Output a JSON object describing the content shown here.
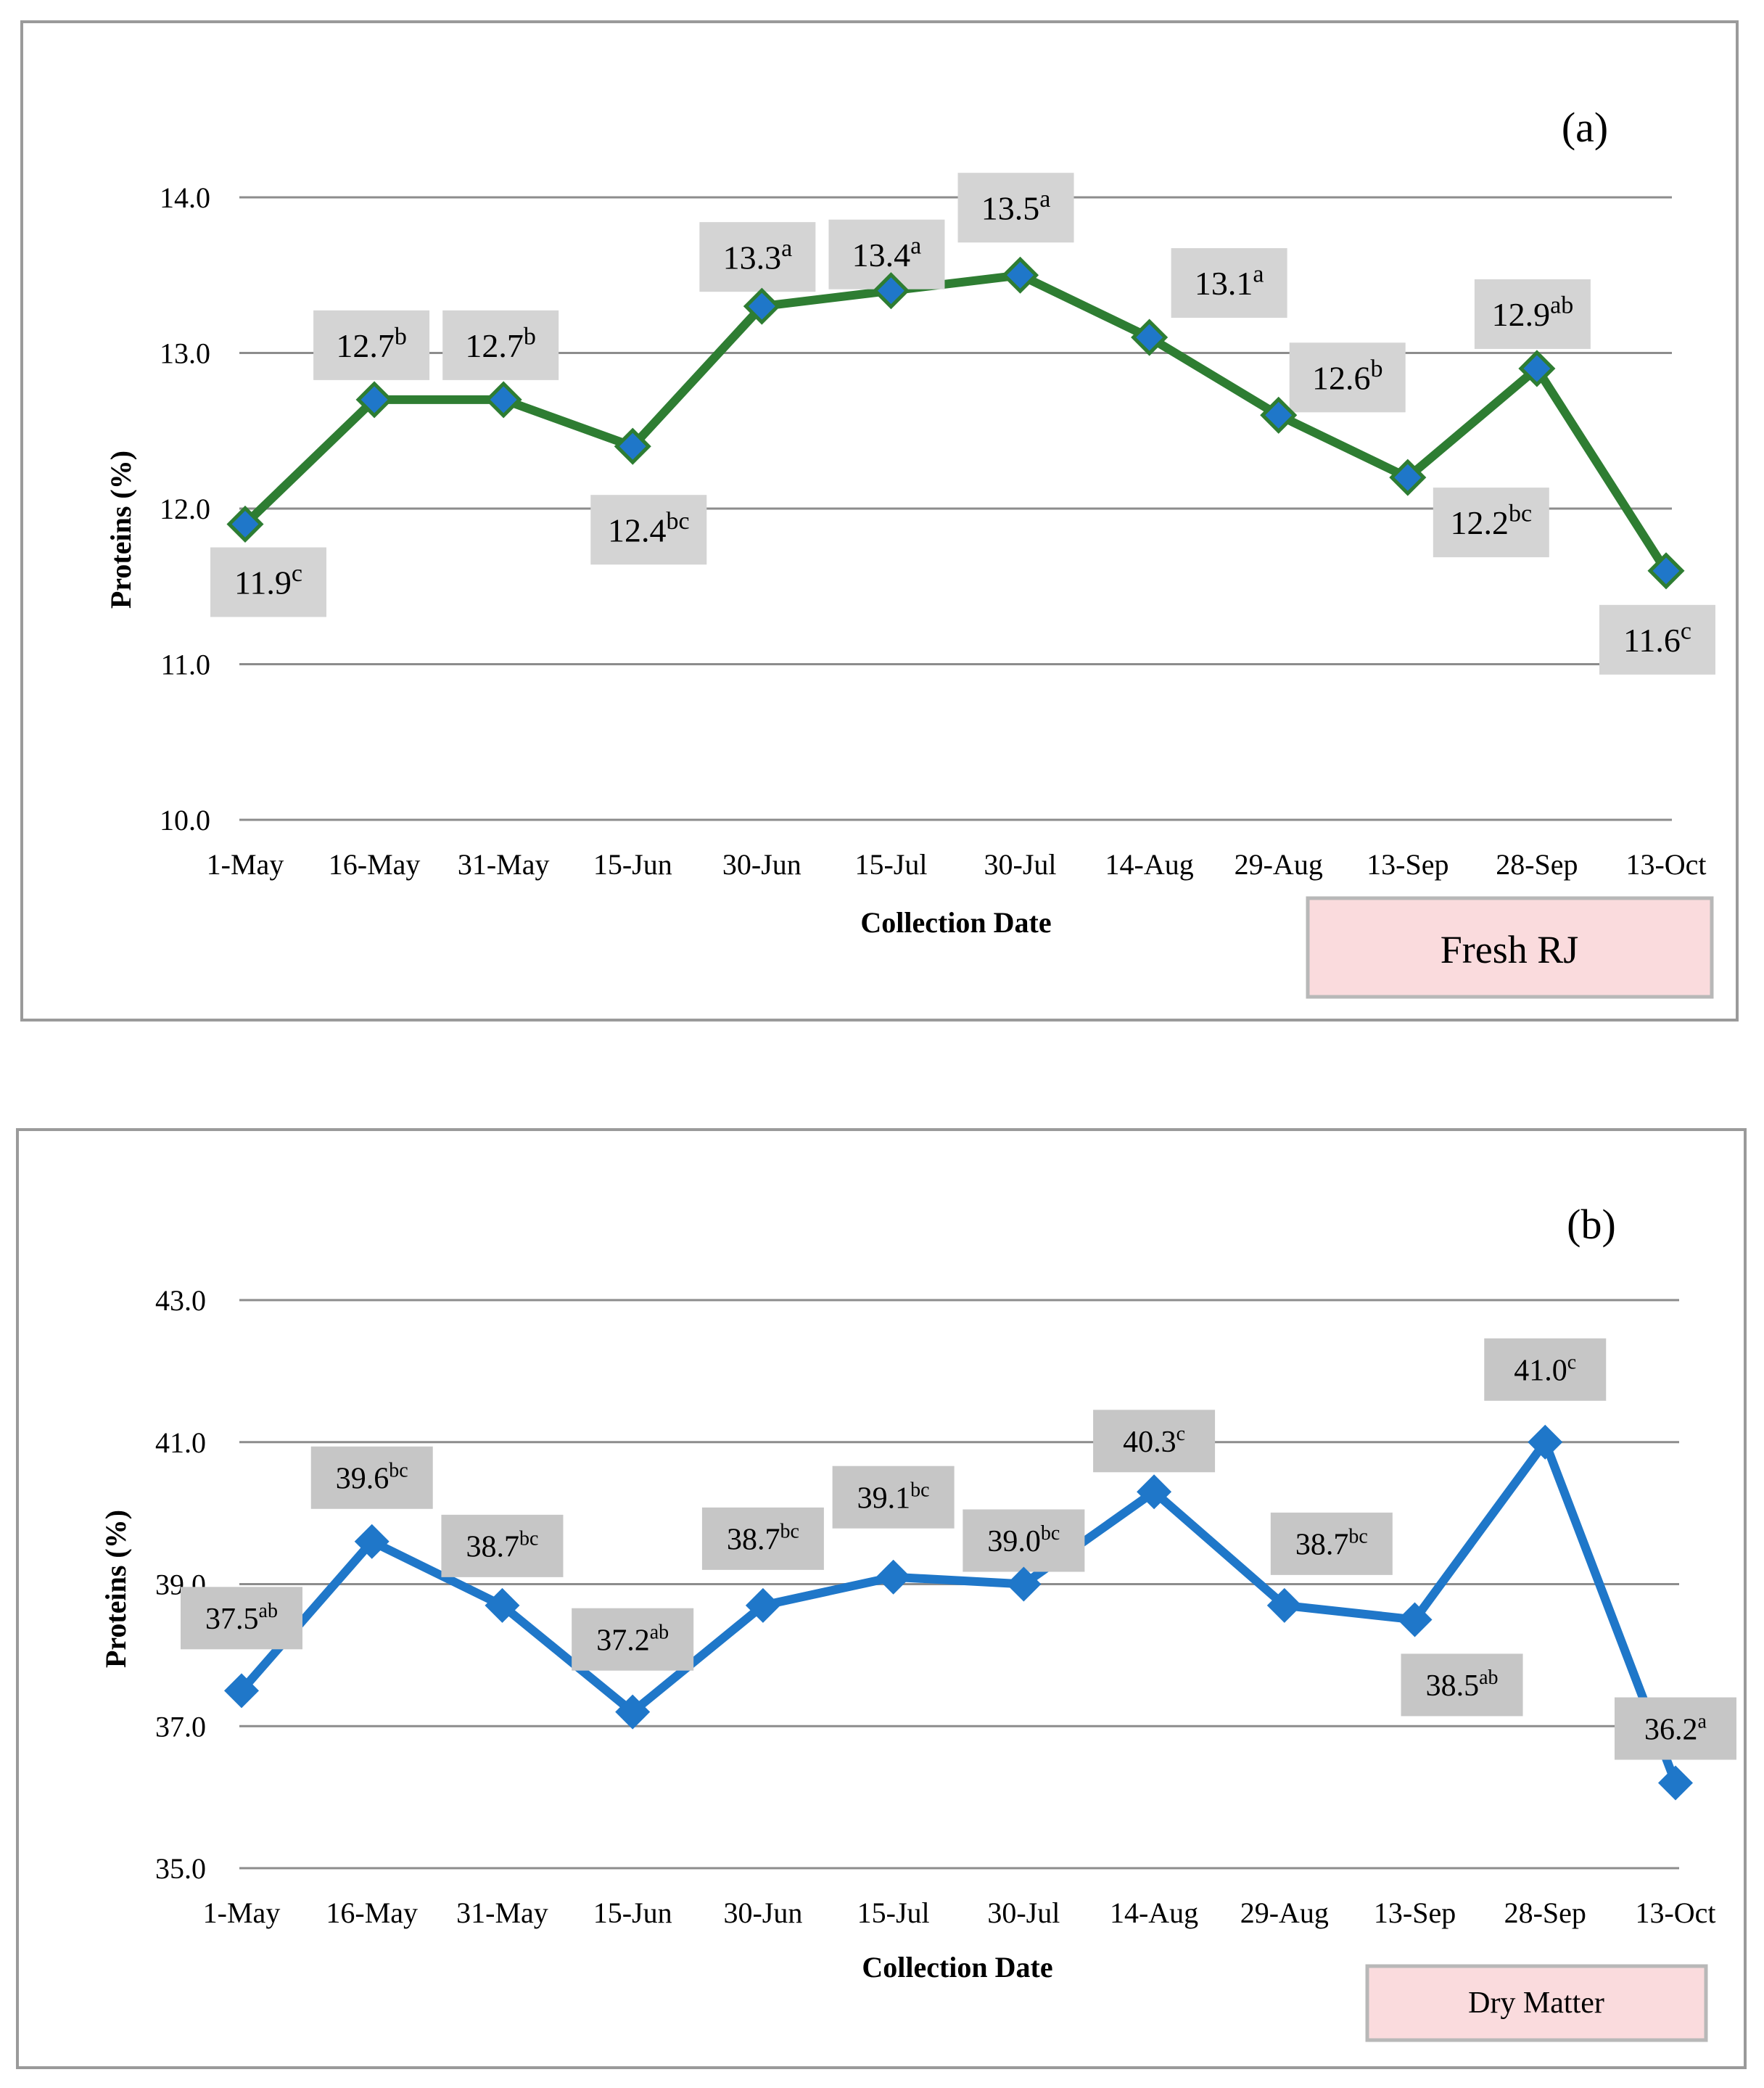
{
  "chart_data": [
    {
      "type": "line",
      "panel_label": "(a)",
      "title": "",
      "xlabel": "Collection Date",
      "ylabel": "Proteins (%)",
      "categories": [
        "1-May",
        "16-May",
        "31-May",
        "15-Jun",
        "30-Jun",
        "15-Jul",
        "30-Jul",
        "14-Aug",
        "29-Aug",
        "13-Sep",
        "28-Sep",
        "13-Oct"
      ],
      "yticks": [
        "10.0",
        "11.0",
        "12.0",
        "13.0",
        "14.0"
      ],
      "ylim": [
        10.0,
        14.0
      ],
      "series": [
        {
          "name": "Fresh RJ",
          "values": [
            11.9,
            12.7,
            12.7,
            12.4,
            13.3,
            13.4,
            13.5,
            13.1,
            12.6,
            12.2,
            12.9,
            11.6
          ],
          "labels": [
            "11.9",
            "12.7",
            "12.7",
            "12.4",
            "13.3",
            "13.4",
            "13.5",
            "13.1",
            "12.6",
            "12.2",
            "12.9",
            "11.6"
          ],
          "letters": [
            "c",
            "b",
            "b",
            "bc",
            "a",
            "a",
            "a",
            "a",
            "b",
            "bc",
            "ab",
            "c"
          ]
        }
      ],
      "legend": "Fresh RJ",
      "colors": {
        "line": "#2e7d32",
        "marker": "#1f77c9",
        "marker_edge": "#2e7d32",
        "label_box": "#d4d4d4",
        "legend_fill": "#fadbdd"
      }
    },
    {
      "type": "line",
      "panel_label": "(b)",
      "title": "",
      "xlabel": "Collection Date",
      "ylabel": "Proteins (%)",
      "categories": [
        "1-May",
        "16-May",
        "31-May",
        "15-Jun",
        "30-Jun",
        "15-Jul",
        "30-Jul",
        "14-Aug",
        "29-Aug",
        "13-Sep",
        "28-Sep",
        "13-Oct"
      ],
      "yticks": [
        "35.0",
        "37.0",
        "39.0",
        "41.0",
        "43.0"
      ],
      "ylim": [
        35.0,
        43.0
      ],
      "series": [
        {
          "name": "Dry Matter",
          "values": [
            37.5,
            39.6,
            38.7,
            37.2,
            38.7,
            39.1,
            39.0,
            40.3,
            38.7,
            38.5,
            41.0,
            36.2
          ],
          "labels": [
            "37.5",
            "39.6",
            "38.7",
            "37.2",
            "38.7",
            "39.1",
            "39.0",
            "40.3",
            "38.7",
            "38.5",
            "41.0",
            "36.2"
          ],
          "letters": [
            "ab",
            "bc",
            "bc",
            "ab",
            "bc",
            "bc",
            "bc",
            "c",
            "bc",
            "ab",
            "c",
            "a"
          ]
        }
      ],
      "legend": "Dry Matter",
      "colors": {
        "line": "#1f77c9",
        "marker": "#1f77c9",
        "marker_edge": "#1f77c9",
        "label_box": "#c6c6c6",
        "legend_fill": "#fadbdd"
      }
    }
  ]
}
